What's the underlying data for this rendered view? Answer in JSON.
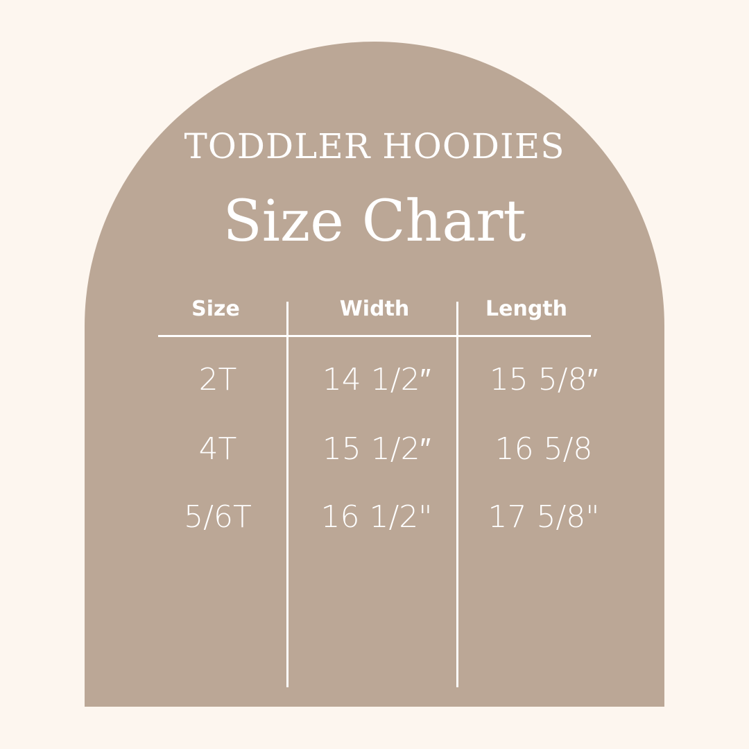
{
  "colors": {
    "background": "#fdf6ef",
    "arch": "#bba796",
    "text": "#ffffff"
  },
  "header": {
    "subtitle": "TODDLER HOODIES",
    "title": "Size Chart"
  },
  "table": {
    "columns": [
      "Size",
      "Width",
      "Length"
    ],
    "rows": [
      [
        "2T",
        "14 1/2″",
        "15 5/8″"
      ],
      [
        "4T",
        "15 1/2″",
        "16 5/8"
      ],
      [
        "5/6T",
        "16 1/2\"",
        "17 5/8\""
      ]
    ]
  }
}
